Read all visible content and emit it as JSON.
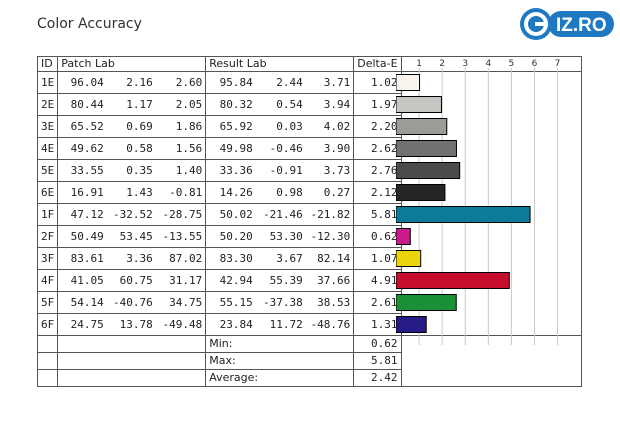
{
  "title": "Color Accuracy",
  "logo": {
    "text": "IZ.RO"
  },
  "columns": {
    "id": "ID",
    "patch": "Patch Lab",
    "result": "Result Lab",
    "delta": "Delta-E"
  },
  "rows": [
    {
      "id": "1E",
      "patch": [
        "96.04",
        "2.16",
        "2.60"
      ],
      "result": [
        "95.84",
        "2.44",
        "3.71"
      ],
      "delta": "1.02",
      "color": "#f9f4ee"
    },
    {
      "id": "2E",
      "patch": [
        "80.44",
        "1.17",
        "2.05"
      ],
      "result": [
        "80.32",
        "0.54",
        "3.94"
      ],
      "delta": "1.97",
      "color": "#c6c6c2"
    },
    {
      "id": "3E",
      "patch": [
        "65.52",
        "0.69",
        "1.86"
      ],
      "result": [
        "65.92",
        "0.03",
        "4.02"
      ],
      "delta": "2.20",
      "color": "#9b9b97"
    },
    {
      "id": "4E",
      "patch": [
        "49.62",
        "0.58",
        "1.56"
      ],
      "result": [
        "49.98",
        "-0.46",
        "3.90"
      ],
      "delta": "2.62",
      "color": "#717170"
    },
    {
      "id": "5E",
      "patch": [
        "33.55",
        "0.35",
        "1.40"
      ],
      "result": [
        "33.36",
        "-0.91",
        "3.73"
      ],
      "delta": "2.76",
      "color": "#4a4c4a"
    },
    {
      "id": "6E",
      "patch": [
        "16.91",
        "1.43",
        "-0.81"
      ],
      "result": [
        "14.26",
        "0.98",
        "0.27"
      ],
      "delta": "2.12",
      "color": "#252525"
    },
    {
      "id": "1F",
      "patch": [
        "47.12",
        "-32.52",
        "-28.75"
      ],
      "result": [
        "50.02",
        "-21.46",
        "-21.82"
      ],
      "delta": "5.81",
      "color": "#0b7b99"
    },
    {
      "id": "2F",
      "patch": [
        "50.49",
        "53.45",
        "-13.55"
      ],
      "result": [
        "50.20",
        "53.30",
        "-12.30"
      ],
      "delta": "0.62",
      "color": "#cb1a8a"
    },
    {
      "id": "3F",
      "patch": [
        "83.61",
        "3.36",
        "87.02"
      ],
      "result": [
        "83.30",
        "3.67",
        "82.14"
      ],
      "delta": "1.07",
      "color": "#ecd40c"
    },
    {
      "id": "4F",
      "patch": [
        "41.05",
        "60.75",
        "31.17"
      ],
      "result": [
        "42.94",
        "55.39",
        "37.66"
      ],
      "delta": "4.91",
      "color": "#c40e2c"
    },
    {
      "id": "5F",
      "patch": [
        "54.14",
        "-40.76",
        "34.75"
      ],
      "result": [
        "55.15",
        "-37.38",
        "38.53"
      ],
      "delta": "2.61",
      "color": "#1a9136"
    },
    {
      "id": "6F",
      "patch": [
        "24.75",
        "13.78",
        "-49.48"
      ],
      "result": [
        "23.84",
        "11.72",
        "-48.76"
      ],
      "delta": "1.31",
      "color": "#261a86"
    }
  ],
  "stats": [
    {
      "label": "Min:",
      "value": "0.62"
    },
    {
      "label": "Max:",
      "value": "5.81"
    },
    {
      "label": "Average:",
      "value": "2.42"
    }
  ],
  "chart_data": {
    "type": "bar",
    "title": "Color Accuracy",
    "categories": [
      "1E",
      "2E",
      "3E",
      "4E",
      "5E",
      "6E",
      "1F",
      "2F",
      "3F",
      "4F",
      "5F",
      "6F"
    ],
    "values": [
      1.02,
      1.97,
      2.2,
      2.62,
      2.76,
      2.12,
      5.81,
      0.62,
      1.07,
      4.91,
      2.61,
      1.31
    ],
    "xlim": [
      0,
      7.8
    ],
    "xticks": [
      1,
      2,
      3,
      4,
      5,
      6,
      7
    ],
    "orientation": "horizontal",
    "grid": true
  }
}
